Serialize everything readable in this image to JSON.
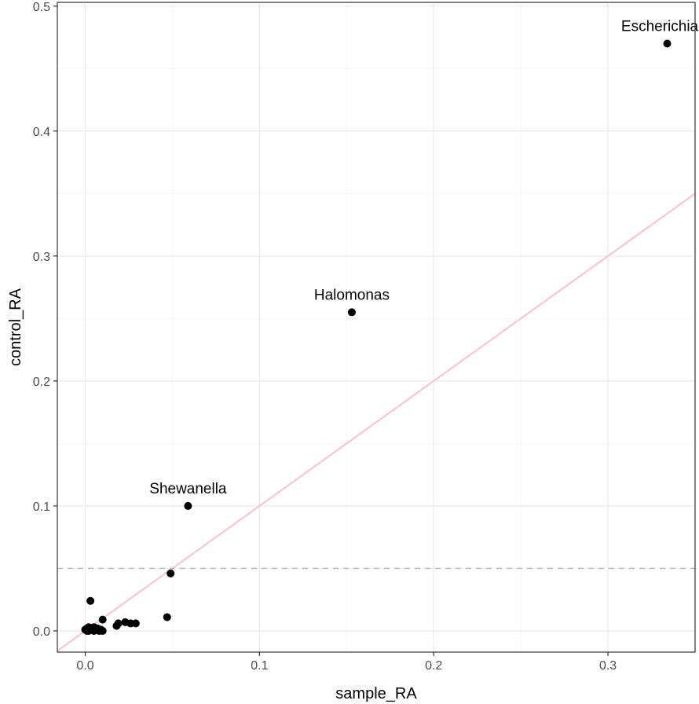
{
  "chart_data": {
    "type": "scatter",
    "xlabel": "sample_RA",
    "ylabel": "control_RA",
    "xlim": [
      -0.016,
      0.35
    ],
    "ylim": [
      -0.017,
      0.503
    ],
    "x_ticks": [
      0.0,
      0.1,
      0.2,
      0.3
    ],
    "x_tick_labels": [
      "0.0",
      "0.1",
      "0.2",
      "0.3"
    ],
    "y_ticks": [
      0.0,
      0.1,
      0.2,
      0.3,
      0.4,
      0.5
    ],
    "y_tick_labels": [
      "0.0",
      "0.1",
      "0.2",
      "0.3",
      "0.4",
      "0.5"
    ],
    "grid": true,
    "points": [
      {
        "x": 0.334,
        "y": 0.47,
        "label": "Escherichia-S"
      },
      {
        "x": 0.153,
        "y": 0.255,
        "label": "Halomonas"
      },
      {
        "x": 0.059,
        "y": 0.1,
        "label": "Shewanella"
      },
      {
        "x": 0.049,
        "y": 0.046
      },
      {
        "x": 0.047,
        "y": 0.011
      },
      {
        "x": 0.003,
        "y": 0.024
      },
      {
        "x": 0.01,
        "y": 0.009
      },
      {
        "x": 0.019,
        "y": 0.006
      },
      {
        "x": 0.018,
        "y": 0.004
      },
      {
        "x": 0.023,
        "y": 0.007
      },
      {
        "x": 0.026,
        "y": 0.006
      },
      {
        "x": 0.029,
        "y": 0.006
      },
      {
        "x": 0.0,
        "y": 0.001
      },
      {
        "x": 0.001,
        "y": 0.002
      },
      {
        "x": 0.002,
        "y": 0.0
      },
      {
        "x": 0.003,
        "y": 0.001
      },
      {
        "x": 0.004,
        "y": 0.002
      },
      {
        "x": 0.005,
        "y": 0.0
      },
      {
        "x": 0.006,
        "y": 0.001
      },
      {
        "x": 0.007,
        "y": 0.002
      },
      {
        "x": 0.008,
        "y": 0.0
      },
      {
        "x": 0.009,
        "y": 0.001
      },
      {
        "x": 0.01,
        "y": 0.0
      },
      {
        "x": 0.002,
        "y": 0.003
      },
      {
        "x": 0.005,
        "y": 0.003
      },
      {
        "x": 0.001,
        "y": 0.0
      }
    ],
    "reference_lines": [
      {
        "kind": "diagonal",
        "slope": 1,
        "intercept": 0,
        "color": "#ffc0cb"
      },
      {
        "kind": "horizontal",
        "y": 0.05,
        "style": "dashed",
        "color": "#bebebe"
      }
    ],
    "colors": {
      "point": "#000000",
      "panel_border": "#333333",
      "grid_major": "#ebebeb",
      "grid_minor": "#f5f5f5",
      "tick": "#333333"
    }
  }
}
